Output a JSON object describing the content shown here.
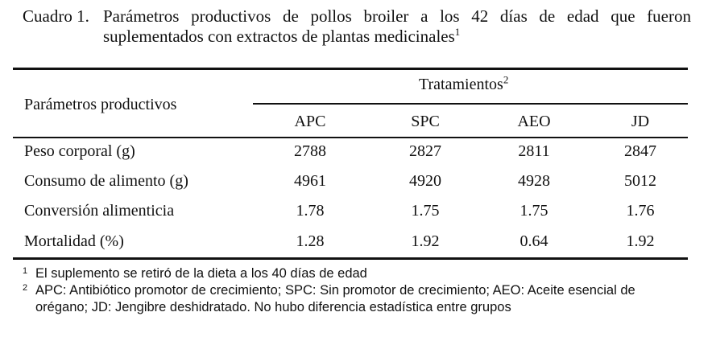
{
  "caption": {
    "label": "Cuadro 1.",
    "line1": "Parámetros productivos de pollos broiler a los 42 días de edad que fueron",
    "line2": "suplementados con extractos de plantas medicinales",
    "sup": "1"
  },
  "table": {
    "param_header": "Parámetros productivos",
    "group_header": "Tratamientos",
    "group_sup": "2",
    "columns": [
      "APC",
      "SPC",
      "AEO",
      "JD"
    ],
    "rows": [
      {
        "label": "Peso corporal (g)",
        "values": [
          "2788",
          "2827",
          "2811",
          "2847"
        ]
      },
      {
        "label": "Consumo de alimento (g)",
        "values": [
          "4961",
          "4920",
          "4928",
          "5012"
        ]
      },
      {
        "label": "Conversión alimenticia",
        "values": [
          "1.78",
          "1.75",
          "1.75",
          "1.76"
        ]
      },
      {
        "label": "Mortalidad (%)",
        "values": [
          "1.28",
          "1.92",
          "0.64",
          "1.92"
        ]
      }
    ]
  },
  "footnotes": [
    {
      "mark": "1",
      "text": "El suplemento se retiró de la dieta a los 40 días de edad"
    },
    {
      "mark": "2",
      "text": "APC: Antibiótico promotor de crecimiento; SPC: Sin promotor de crecimiento; AEO: Aceite esencial de orégano; JD: Jengibre deshidratado. No hubo diferencia estadística entre grupos"
    }
  ]
}
